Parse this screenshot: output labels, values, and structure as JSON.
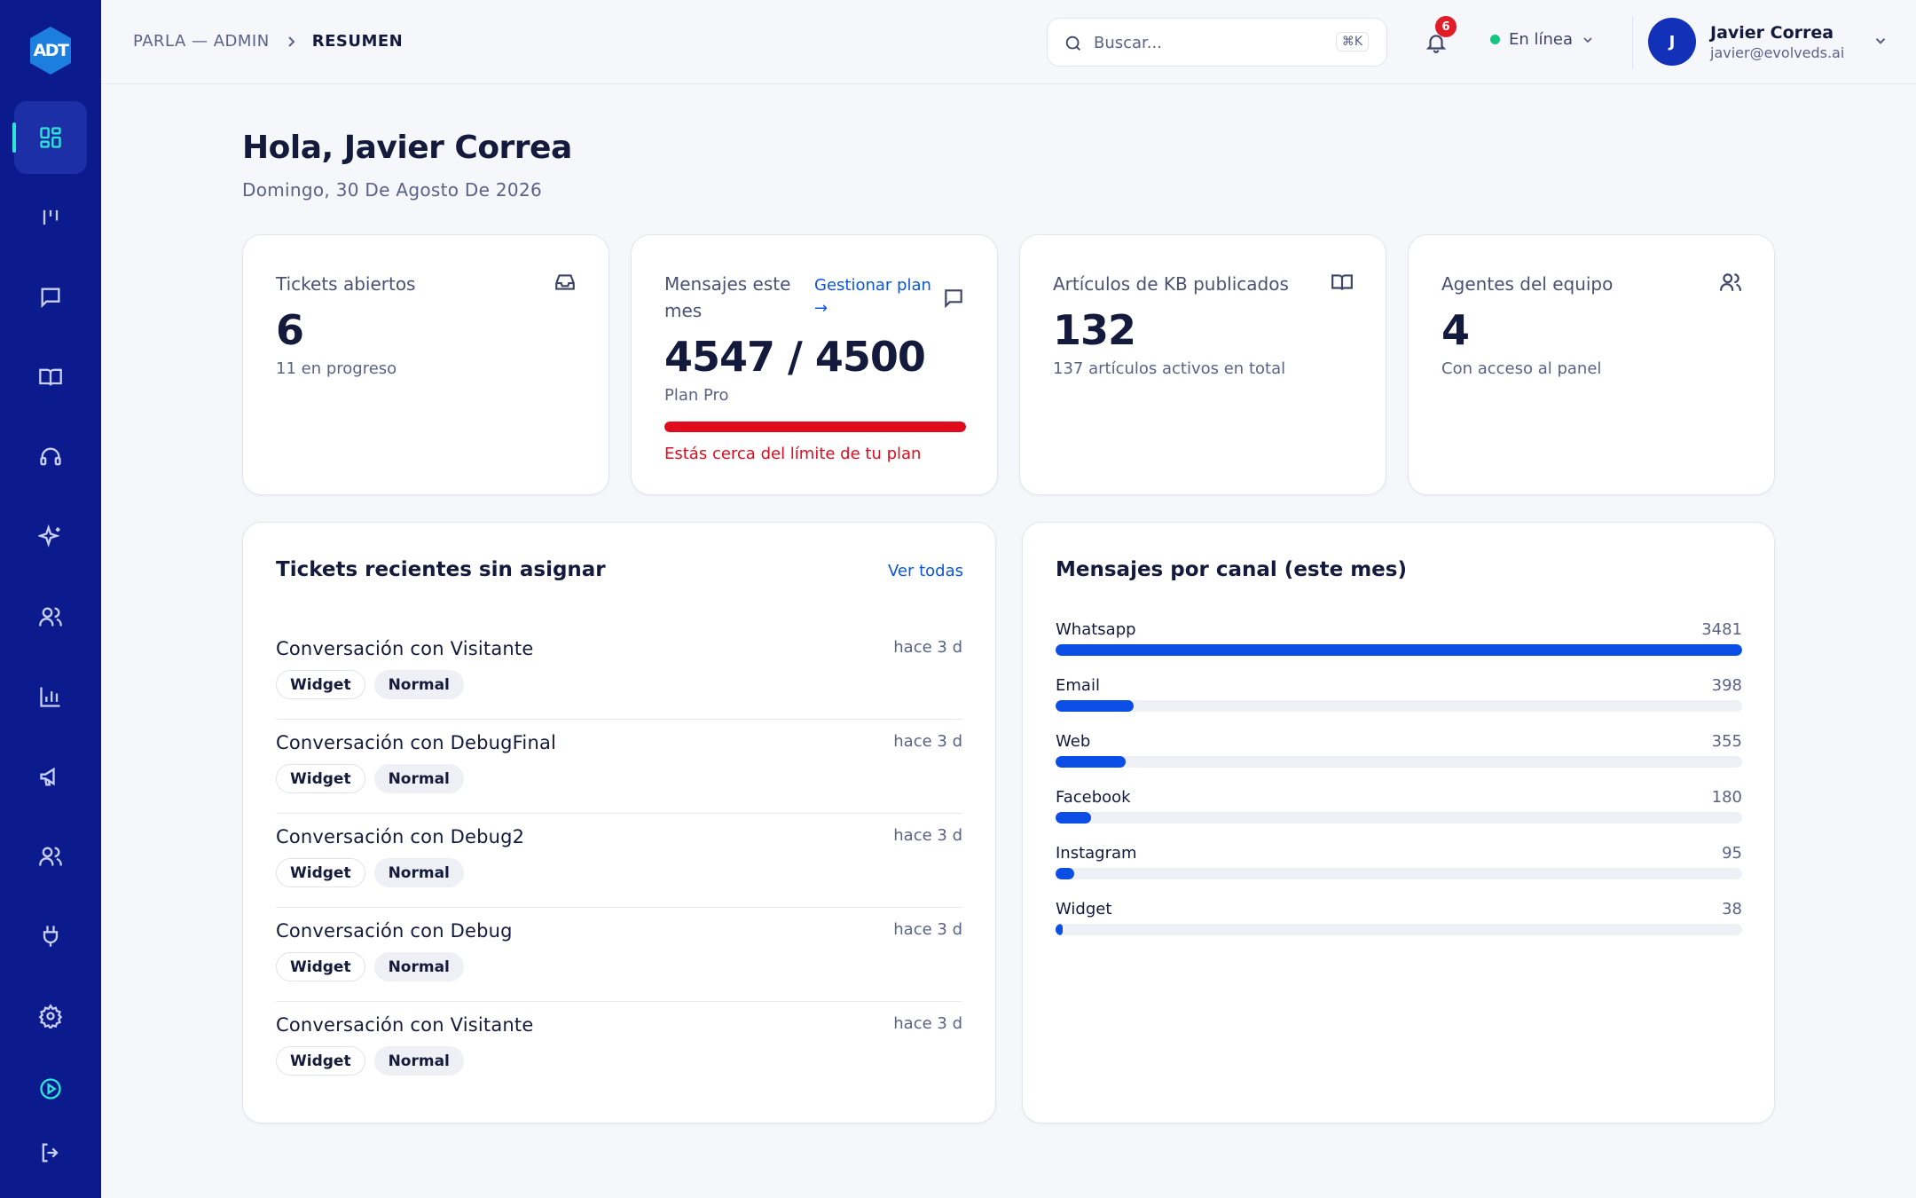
{
  "sidebar": {
    "logo": "ADT",
    "items": [
      {
        "name": "dashboard"
      },
      {
        "name": "kanban"
      },
      {
        "name": "messages"
      },
      {
        "name": "knowledge-base"
      },
      {
        "name": "support"
      },
      {
        "name": "ai"
      },
      {
        "name": "contacts"
      },
      {
        "name": "reports"
      },
      {
        "name": "campaigns"
      },
      {
        "name": "team"
      },
      {
        "name": "integrations"
      },
      {
        "name": "settings"
      },
      {
        "name": "play"
      },
      {
        "name": "logout"
      }
    ]
  },
  "header": {
    "breadcrumb_parent": "PARLA — ADMIN",
    "breadcrumb_current": "RESUMEN",
    "search_placeholder": "Buscar...",
    "search_shortcut": "⌘K",
    "notifications_count": "6",
    "status": "En línea",
    "user_initial": "J",
    "user_name": "Javier Correa",
    "user_email": "javier@evolveds.ai"
  },
  "greeting": {
    "title": "Hola, Javier Correa",
    "date": "Domingo, 30 De Agosto De 2026"
  },
  "stats": {
    "tickets": {
      "label": "Tickets abiertos",
      "value": "6",
      "sub": "11 en progreso"
    },
    "messages": {
      "label": "Mensajes este mes",
      "link": "Gestionar plan →",
      "value": "4547 / 4500",
      "sub": "Plan Pro",
      "usage_fraction": 1.0,
      "warning": "Estás cerca del límite de tu plan"
    },
    "kb": {
      "label": "Artículos de KB publicados",
      "value": "132",
      "sub": "137 artículos activos en total"
    },
    "agents": {
      "label": "Agentes del equipo",
      "value": "4",
      "sub": "Con acceso al panel"
    }
  },
  "tickets_panel": {
    "title": "Tickets recientes sin asignar",
    "view_all": "Ver todas",
    "items": [
      {
        "title": "Conversación con Visitante",
        "time": "hace 3 d",
        "channel": "Widget",
        "priority": "Normal"
      },
      {
        "title": "Conversación con DebugFinal",
        "time": "hace 3 d",
        "channel": "Widget",
        "priority": "Normal"
      },
      {
        "title": "Conversación con Debug2",
        "time": "hace 3 d",
        "channel": "Widget",
        "priority": "Normal"
      },
      {
        "title": "Conversación con Debug",
        "time": "hace 3 d",
        "channel": "Widget",
        "priority": "Normal"
      },
      {
        "title": "Conversación con Visitante",
        "time": "hace 3 d",
        "channel": "Widget",
        "priority": "Normal"
      }
    ]
  },
  "channels_panel": {
    "title": "Mensajes por canal (este mes)",
    "bar_color": "#0a4ee6",
    "items": [
      {
        "label": "Whatsapp",
        "value": 3481
      },
      {
        "label": "Email",
        "value": 398
      },
      {
        "label": "Web",
        "value": 355
      },
      {
        "label": "Facebook",
        "value": 180
      },
      {
        "label": "Instagram",
        "value": 95
      },
      {
        "label": "Widget",
        "value": 38
      }
    ]
  },
  "colors": {
    "sidebar": "#0b1a8c",
    "accent": "#0a55e6",
    "danger": "#e00b1c",
    "online": "#16c47f"
  }
}
